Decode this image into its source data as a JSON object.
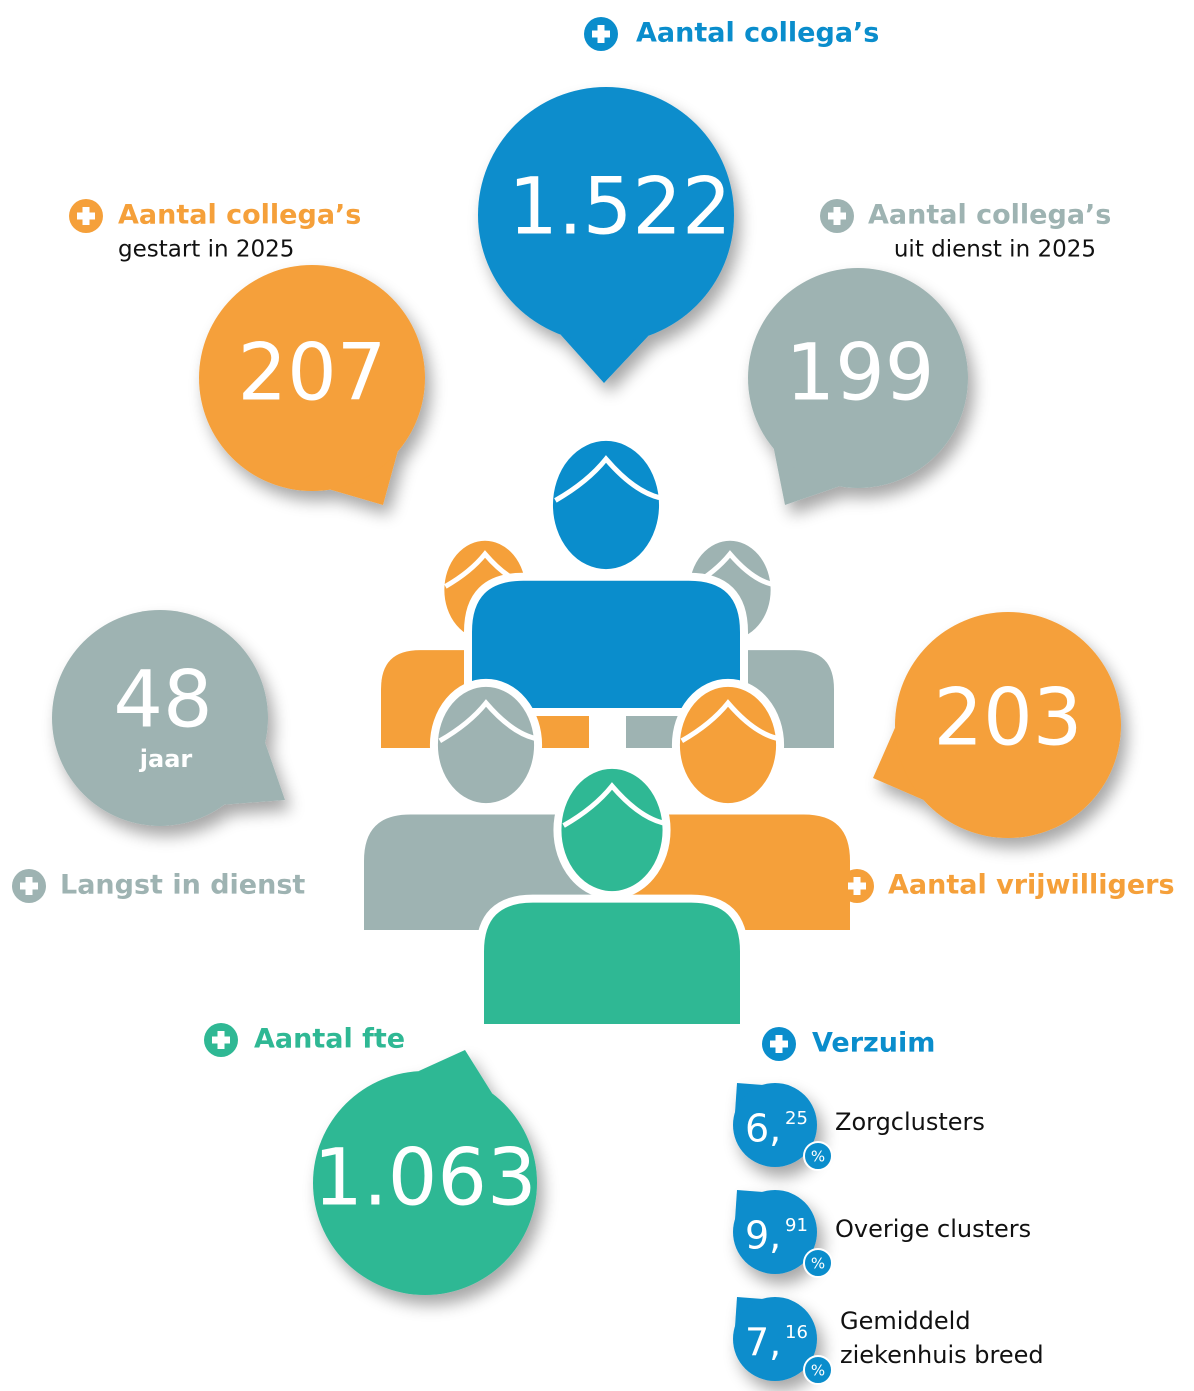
{
  "header": {
    "title": "Aantal collega’s",
    "value": "1.522"
  },
  "started": {
    "title": "Aantal collega’s",
    "subtitle": "gestart in 2025",
    "value": "207"
  },
  "left": {
    "title": "Aantal collega’s",
    "subtitle": "uit dienst in 2025",
    "value": "199"
  },
  "longest": {
    "value": "48",
    "unit": "jaar",
    "title": "Langst in dienst"
  },
  "volunteers": {
    "value": "203",
    "title": "Aantal vrijwilligers"
  },
  "fte": {
    "title": "Aantal fte",
    "value": "1.063"
  },
  "absence": {
    "title": "Verzuim",
    "items": [
      {
        "whole": "6,",
        "decimal": "25",
        "unit": "%",
        "label": [
          "Zorgclusters"
        ]
      },
      {
        "whole": "9,",
        "decimal": "91",
        "unit": "%",
        "label": [
          "Overige clusters"
        ]
      },
      {
        "whole": "7,",
        "decimal": "16",
        "unit": "%",
        "label": [
          "Gemiddeld",
          "ziekenhuis breed"
        ]
      }
    ]
  }
}
